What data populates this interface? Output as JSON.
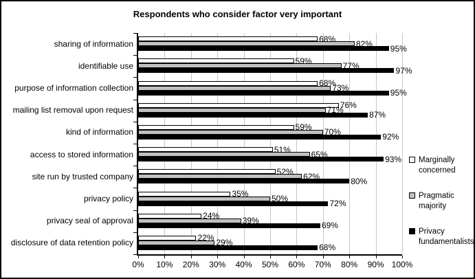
{
  "chart_data": {
    "type": "bar",
    "orientation": "horizontal",
    "title": "Respondents who consider factor very important",
    "categories": [
      "sharing of information",
      "identifiable use",
      "purpose of information collection",
      "mailing list removal upon request",
      "kind of information",
      "access to stored information",
      "site run by trusted company",
      "privacy policy",
      "privacy seal of approval",
      "disclosure of data retention policy"
    ],
    "series": [
      {
        "name": "Marginally concerned",
        "color": "#ffffff",
        "values": [
          68,
          59,
          68,
          76,
          59,
          51,
          52,
          35,
          24,
          22
        ]
      },
      {
        "name": "Pragmatic majority",
        "color": "#c0c0c0",
        "values": [
          82,
          77,
          73,
          71,
          70,
          65,
          62,
          50,
          39,
          29
        ]
      },
      {
        "name": "Privacy fundamentalists",
        "color": "#000000",
        "values": [
          95,
          97,
          95,
          87,
          92,
          93,
          80,
          72,
          69,
          68
        ]
      }
    ],
    "x_axis": {
      "min": 0,
      "max": 100,
      "ticks": [
        "0%",
        "10%",
        "20%",
        "30%",
        "40%",
        "50%",
        "60%",
        "70%",
        "80%",
        "90%",
        "100%"
      ]
    },
    "data_label_suffix": "%",
    "grid": true,
    "legend_position": "right",
    "colors": {
      "gridline": "#c6c6c6",
      "axis": "#000000",
      "background": "#ffffff"
    }
  }
}
